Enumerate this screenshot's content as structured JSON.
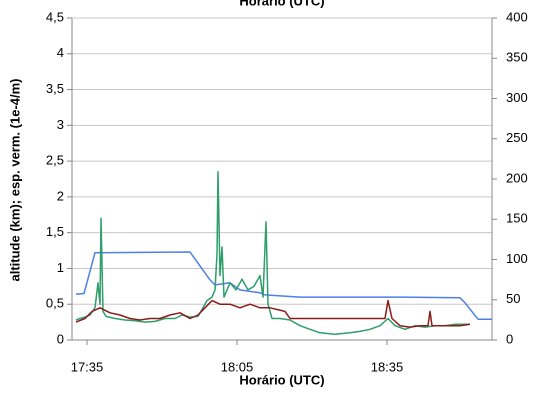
{
  "chart_data": {
    "type": "line",
    "title": "Horário (UTC)",
    "xlabel": "Horário (UTC)",
    "ylabel": "altitude (km); esp. verm. (1e-4/m)",
    "xlim": [
      1052,
      1136
    ],
    "xticks": [
      {
        "value": 1055,
        "label": "17:35"
      },
      {
        "value": 1085,
        "label": "18:05"
      },
      {
        "value": 1115,
        "label": "18:35"
      }
    ],
    "ylim": [
      0,
      4.5
    ],
    "yticks": [
      0,
      {
        "value": 0.5,
        "label": "0,5"
      },
      1,
      {
        "value": 1.5,
        "label": "1,5"
      },
      2,
      {
        "value": 2.5,
        "label": "2,5"
      },
      3,
      {
        "value": 3.5,
        "label": "3,5"
      },
      4,
      {
        "value": 4.5,
        "label": "4,5"
      }
    ],
    "y2lim": [
      0,
      400
    ],
    "y2ticks": [
      0,
      50,
      100,
      150,
      200,
      250,
      300,
      350,
      400
    ],
    "grid": true,
    "series": [
      {
        "color": "#4f7fe8",
        "x": [
          1052.8,
          1054.4,
          1056.6,
          1075.6,
          1079.6,
          1080.6,
          1083.6,
          1085.6,
          1089.6,
          1090.6,
          1097.6,
          1117.6,
          1129.6,
          1130.6,
          1133.2,
          1136
        ],
        "values": [
          0.64,
          0.65,
          1.22,
          1.23,
          0.84,
          0.77,
          0.8,
          0.7,
          0.66,
          0.63,
          0.6,
          0.6,
          0.59,
          0.52,
          0.29,
          0.29
        ]
      },
      {
        "color": "#2e9e6a",
        "x": [
          1052.8,
          1053.6,
          1054.6,
          1055.6,
          1056.6,
          1057.2,
          1057.6,
          1057.8,
          1058.2,
          1058.8,
          1060.6,
          1062.6,
          1064.6,
          1066.6,
          1068.6,
          1070.6,
          1072.6,
          1074,
          1075.6,
          1077.2,
          1078.2,
          1079,
          1080,
          1080.6,
          1081,
          1081.2,
          1081.6,
          1082,
          1082.4,
          1083.6,
          1084.8,
          1086,
          1087.2,
          1088.4,
          1089.6,
          1090.2,
          1090.8,
          1091.2,
          1092,
          1093.6,
          1095.6,
          1097.6,
          1099.6,
          1101.6,
          1104.6,
          1107.6,
          1109.6,
          1111.6,
          1113.6,
          1115.2,
          1116.6,
          1118.6,
          1120.6,
          1122.6,
          1124.6,
          1126.6,
          1128.6,
          1131.6
        ],
        "values": [
          0.28,
          0.3,
          0.32,
          0.35,
          0.45,
          0.8,
          0.5,
          1.7,
          0.4,
          0.33,
          0.3,
          0.28,
          0.27,
          0.25,
          0.26,
          0.3,
          0.3,
          0.35,
          0.32,
          0.33,
          0.45,
          0.55,
          0.6,
          0.7,
          1.2,
          2.35,
          0.9,
          1.3,
          0.6,
          0.8,
          0.7,
          0.85,
          0.7,
          0.75,
          0.9,
          0.6,
          1.65,
          0.5,
          0.3,
          0.3,
          0.28,
          0.2,
          0.15,
          0.1,
          0.08,
          0.1,
          0.12,
          0.15,
          0.2,
          0.3,
          0.2,
          0.15,
          0.2,
          0.18,
          0.2,
          0.2,
          0.22,
          0.22
        ]
      },
      {
        "color": "#8b1a1a",
        "x": [
          1052.8,
          1054.6,
          1056,
          1057.6,
          1059.6,
          1061.6,
          1063.6,
          1065.6,
          1067.6,
          1069.6,
          1071.6,
          1073.6,
          1075.6,
          1077.2,
          1078.6,
          1080,
          1081.6,
          1083.6,
          1085.6,
          1087.6,
          1089.6,
          1091.6,
          1094.6,
          1095.6,
          1114.6,
          1115.2,
          1116,
          1117.6,
          1119.6,
          1121.6,
          1123.2,
          1123.6,
          1124,
          1126.6,
          1129.6,
          1131.6
        ],
        "values": [
          0.25,
          0.3,
          0.4,
          0.45,
          0.38,
          0.35,
          0.3,
          0.28,
          0.3,
          0.3,
          0.35,
          0.38,
          0.3,
          0.35,
          0.45,
          0.55,
          0.5,
          0.5,
          0.45,
          0.5,
          0.45,
          0.45,
          0.4,
          0.3,
          0.3,
          0.55,
          0.3,
          0.2,
          0.18,
          0.2,
          0.2,
          0.4,
          0.2,
          0.2,
          0.2,
          0.22
        ]
      }
    ]
  }
}
